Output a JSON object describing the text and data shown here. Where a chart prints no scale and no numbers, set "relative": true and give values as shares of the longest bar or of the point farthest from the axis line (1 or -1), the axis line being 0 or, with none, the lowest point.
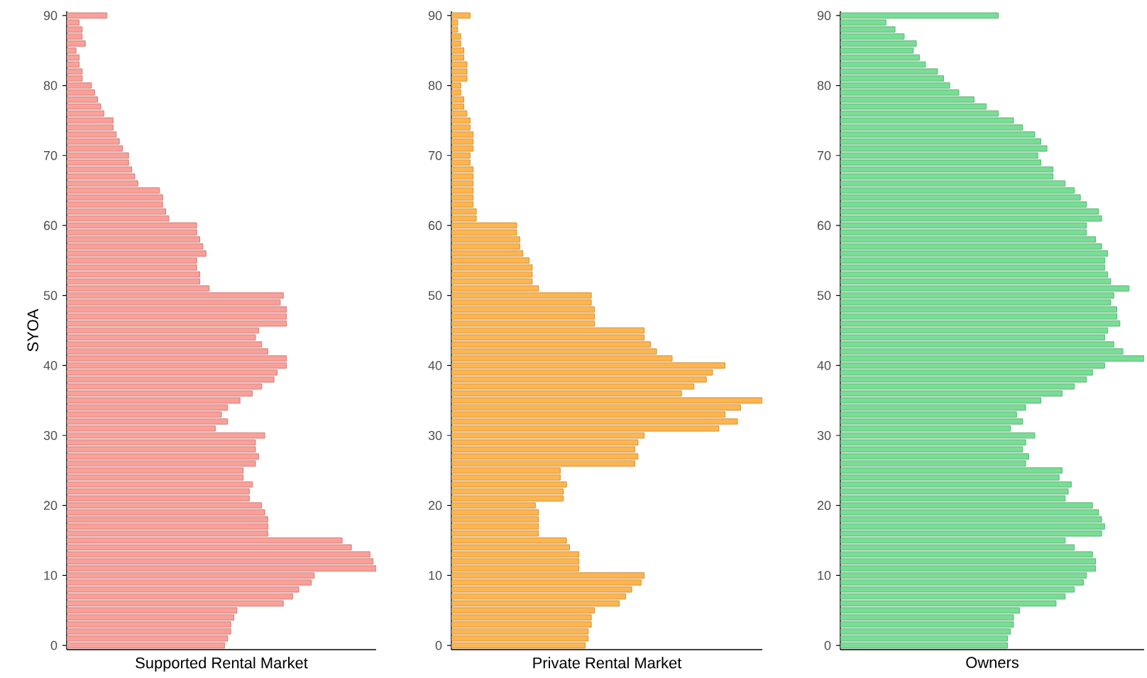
{
  "chart_data": [
    {
      "type": "bar",
      "orientation": "horizontal",
      "relative": true,
      "xlabel": "Supported Rental Market",
      "ylabel": "SYOA",
      "color": "#fb9f99",
      "categories": [
        "90",
        null,
        null,
        null,
        null,
        null,
        null,
        null,
        null,
        null,
        "80",
        null,
        null,
        null,
        null,
        null,
        null,
        null,
        null,
        null,
        "70",
        null,
        null,
        null,
        null,
        null,
        null,
        null,
        null,
        null,
        "60",
        null,
        null,
        null,
        null,
        null,
        null,
        null,
        null,
        null,
        "50",
        null,
        null,
        null,
        null,
        null,
        null,
        null,
        null,
        null,
        "40",
        null,
        null,
        null,
        null,
        null,
        null,
        null,
        null,
        null,
        "30",
        null,
        null,
        null,
        null,
        null,
        null,
        null,
        null,
        null,
        "20",
        null,
        null,
        null,
        null,
        null,
        null,
        null,
        null,
        null,
        "10",
        null,
        null,
        null,
        null,
        null,
        null,
        null,
        null,
        null,
        "0"
      ],
      "values": [
        0.13,
        0.04,
        0.05,
        0.05,
        0.06,
        0.03,
        0.04,
        0.04,
        0.05,
        0.05,
        0.08,
        0.09,
        0.1,
        0.11,
        0.12,
        0.15,
        0.15,
        0.16,
        0.17,
        0.18,
        0.2,
        0.2,
        0.21,
        0.22,
        0.23,
        0.3,
        0.31,
        0.31,
        0.32,
        0.33,
        0.42,
        0.42,
        0.43,
        0.44,
        0.45,
        0.42,
        0.42,
        0.43,
        0.43,
        0.46,
        0.7,
        0.69,
        0.71,
        0.71,
        0.71,
        0.62,
        0.61,
        0.63,
        0.65,
        0.71,
        0.71,
        0.68,
        0.67,
        0.63,
        0.6,
        0.56,
        0.52,
        0.5,
        0.52,
        0.48,
        0.64,
        0.61,
        0.61,
        0.62,
        0.61,
        0.57,
        0.57,
        0.6,
        0.59,
        0.59,
        0.63,
        0.64,
        0.65,
        0.65,
        0.65,
        0.89,
        0.92,
        0.98,
        0.99,
        1,
        0.8,
        0.79,
        0.75,
        0.73,
        0.7,
        0.55,
        0.54,
        0.53,
        0.53,
        0.52,
        0.51
      ]
    },
    {
      "type": "bar",
      "orientation": "horizontal",
      "relative": true,
      "xlabel": "Private Rental Market",
      "color": "#ffb54f",
      "categories": [
        "90",
        null,
        null,
        null,
        null,
        null,
        null,
        null,
        null,
        null,
        "80",
        null,
        null,
        null,
        null,
        null,
        null,
        null,
        null,
        null,
        "70",
        null,
        null,
        null,
        null,
        null,
        null,
        null,
        null,
        null,
        "60",
        null,
        null,
        null,
        null,
        null,
        null,
        null,
        null,
        null,
        "50",
        null,
        null,
        null,
        null,
        null,
        null,
        null,
        null,
        null,
        "40",
        null,
        null,
        null,
        null,
        null,
        null,
        null,
        null,
        null,
        "30",
        null,
        null,
        null,
        null,
        null,
        null,
        null,
        null,
        null,
        "20",
        null,
        null,
        null,
        null,
        null,
        null,
        null,
        null,
        null,
        "10",
        null,
        null,
        null,
        null,
        null,
        null,
        null,
        null,
        null,
        "0"
      ],
      "values": [
        0.06,
        0.02,
        0.02,
        0.03,
        0.03,
        0.04,
        0.04,
        0.05,
        0.05,
        0.05,
        0.03,
        0.03,
        0.04,
        0.04,
        0.05,
        0.06,
        0.06,
        0.07,
        0.07,
        0.07,
        0.06,
        0.06,
        0.07,
        0.07,
        0.07,
        0.07,
        0.07,
        0.07,
        0.08,
        0.08,
        0.21,
        0.21,
        0.22,
        0.22,
        0.23,
        0.25,
        0.26,
        0.26,
        0.26,
        0.28,
        0.45,
        0.45,
        0.46,
        0.46,
        0.46,
        0.62,
        0.62,
        0.64,
        0.66,
        0.71,
        0.88,
        0.84,
        0.82,
        0.78,
        0.74,
        1,
        0.93,
        0.88,
        0.92,
        0.86,
        0.62,
        0.6,
        0.59,
        0.6,
        0.59,
        0.35,
        0.35,
        0.37,
        0.36,
        0.36,
        0.27,
        0.28,
        0.28,
        0.28,
        0.28,
        0.37,
        0.38,
        0.41,
        0.41,
        0.41,
        0.62,
        0.61,
        0.58,
        0.56,
        0.54,
        0.46,
        0.45,
        0.45,
        0.44,
        0.44,
        0.43
      ]
    },
    {
      "type": "bar",
      "orientation": "horizontal",
      "relative": true,
      "xlabel": "Owners",
      "color": "#78dd95",
      "categories": [
        "90",
        null,
        null,
        null,
        null,
        null,
        null,
        null,
        null,
        null,
        "80",
        null,
        null,
        null,
        null,
        null,
        null,
        null,
        null,
        null,
        "70",
        null,
        null,
        null,
        null,
        null,
        null,
        null,
        null,
        null,
        "60",
        null,
        null,
        null,
        null,
        null,
        null,
        null,
        null,
        null,
        "50",
        null,
        null,
        null,
        null,
        null,
        null,
        null,
        null,
        null,
        "40",
        null,
        null,
        null,
        null,
        null,
        null,
        null,
        null,
        null,
        "30",
        null,
        null,
        null,
        null,
        null,
        null,
        null,
        null,
        null,
        "20",
        null,
        null,
        null,
        null,
        null,
        null,
        null,
        null,
        null,
        "10",
        null,
        null,
        null,
        null,
        null,
        null,
        null,
        null,
        null,
        "0"
      ],
      "values": [
        0.52,
        0.15,
        0.18,
        0.21,
        0.25,
        0.24,
        0.26,
        0.28,
        0.32,
        0.34,
        0.36,
        0.39,
        0.44,
        0.48,
        0.52,
        0.57,
        0.6,
        0.64,
        0.66,
        0.68,
        0.65,
        0.66,
        0.7,
        0.7,
        0.74,
        0.77,
        0.79,
        0.81,
        0.85,
        0.86,
        0.81,
        0.81,
        0.84,
        0.86,
        0.88,
        0.87,
        0.87,
        0.88,
        0.89,
        0.95,
        0.9,
        0.89,
        0.91,
        0.91,
        0.92,
        0.88,
        0.87,
        0.9,
        0.93,
        1,
        0.87,
        0.83,
        0.81,
        0.77,
        0.73,
        0.66,
        0.61,
        0.58,
        0.6,
        0.56,
        0.64,
        0.61,
        0.6,
        0.62,
        0.61,
        0.73,
        0.72,
        0.76,
        0.75,
        0.74,
        0.83,
        0.85,
        0.86,
        0.87,
        0.86,
        0.74,
        0.77,
        0.83,
        0.84,
        0.84,
        0.81,
        0.8,
        0.77,
        0.74,
        0.71,
        0.59,
        0.57,
        0.57,
        0.56,
        0.55,
        0.55
      ]
    }
  ]
}
